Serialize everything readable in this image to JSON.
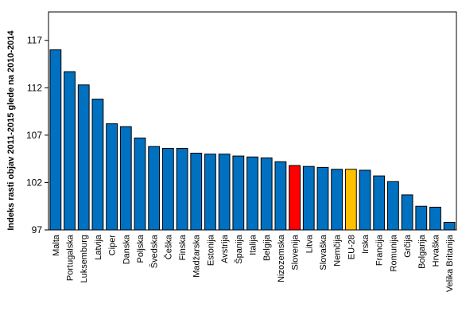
{
  "chart_data": {
    "type": "bar",
    "ylabel": "Indeks rasti objav 2011-2015 glede na 2010-2014",
    "xlabel": "",
    "ylim": [
      97,
      120
    ],
    "yticks": [
      97,
      102,
      107,
      112,
      117
    ],
    "grid": false,
    "categories": [
      "Malta",
      "Portugalska",
      "Luksemburg",
      "Latvija",
      "Ciper",
      "Danska",
      "Poljska",
      "Švedska",
      "Češka",
      "Finska",
      "Madžarska",
      "Estonija",
      "Avstrija",
      "Španija",
      "Italija",
      "Belgija",
      "Nizozemska",
      "Slovenija",
      "Litva",
      "Slovaška",
      "Nemčija",
      "EU-28",
      "Irska",
      "Francija",
      "Romunija",
      "Grčija",
      "Bolgarija",
      "Hrvaška",
      "Velika Britanija"
    ],
    "values": [
      116.0,
      113.7,
      112.3,
      110.8,
      108.2,
      107.9,
      106.7,
      105.8,
      105.6,
      105.6,
      105.1,
      105.0,
      105.0,
      104.8,
      104.7,
      104.6,
      104.2,
      103.8,
      103.7,
      103.6,
      103.4,
      103.4,
      103.3,
      102.7,
      102.1,
      100.7,
      99.5,
      99.4,
      97.8
    ],
    "colors": {
      "default": "#0070c0",
      "highlights": {
        "Slovenija": "#ff0000",
        "EU-28": "#ffc000"
      },
      "stroke": "#000000"
    }
  }
}
